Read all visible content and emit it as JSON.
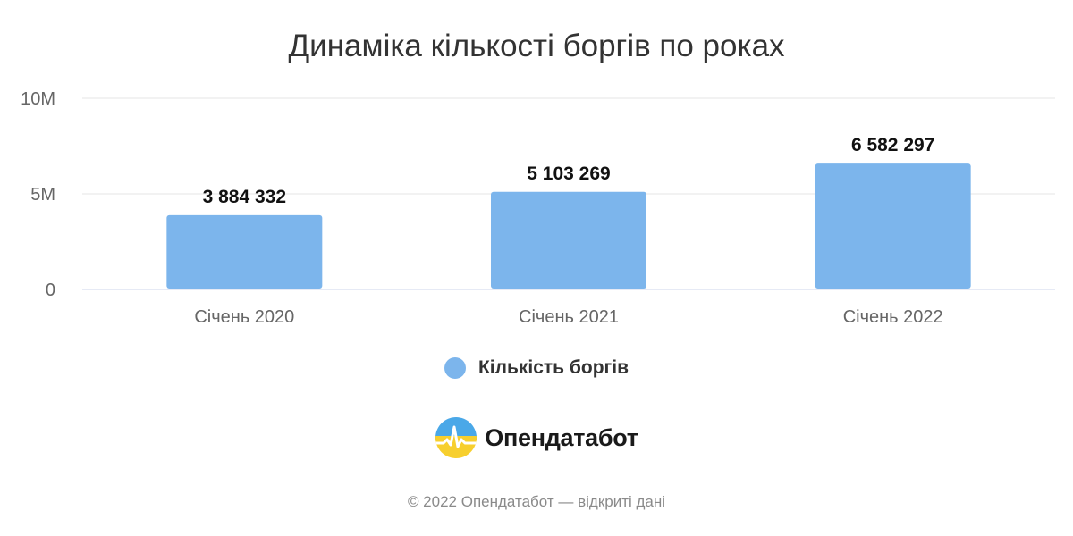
{
  "chart_data": {
    "type": "bar",
    "title": "Динаміка кількості боргів по роках",
    "categories": [
      "Січень 2020",
      "Січень 2021",
      "Січень 2022"
    ],
    "series": [
      {
        "name": "Кількість боргів",
        "values": [
          3884332,
          5103269,
          6582297
        ],
        "data_labels": [
          "3 884 332",
          "5 103 269",
          "6 582 297"
        ]
      }
    ],
    "ylim": [
      0,
      10000000
    ],
    "yticks": [
      {
        "value": 0,
        "label": "0"
      },
      {
        "value": 5000000,
        "label": "5M"
      },
      {
        "value": 10000000,
        "label": "10M"
      }
    ],
    "xlabel": "",
    "ylabel": "",
    "grid": true,
    "legend_position": "bottom"
  },
  "colors": {
    "bar": "#7cb5ec",
    "grid": "#e6e6e6",
    "axis": "#ccd6eb"
  },
  "brand": {
    "name": "Опендатабот",
    "logo_icon": "opendatabot-logo-icon"
  },
  "footer": {
    "text": "© 2022 Опендатабот — відкриті дані"
  }
}
